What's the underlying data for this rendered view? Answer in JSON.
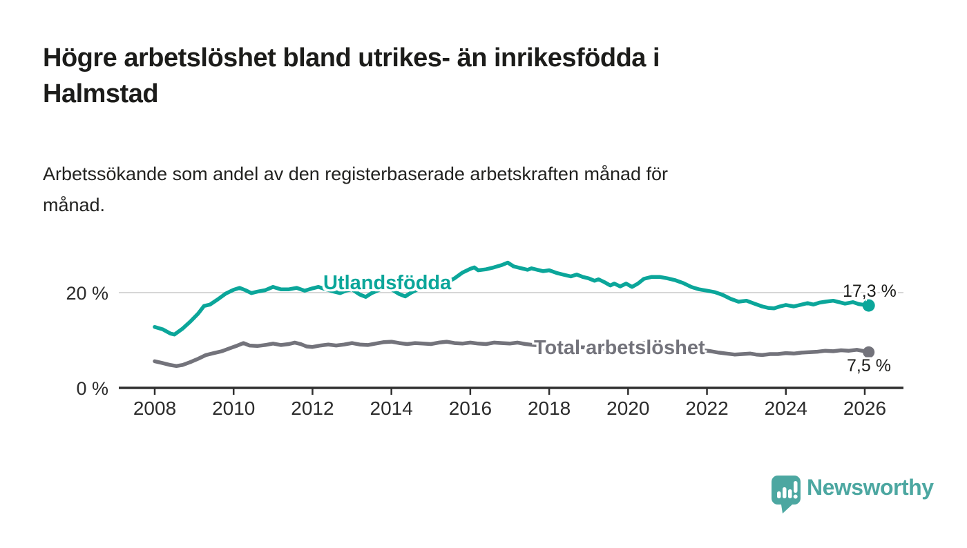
{
  "header": {
    "title_lines": [
      "Högre arbetslöshet bland utrikes- än inrikesfödda i",
      "Halmstad"
    ],
    "subtitle_lines": [
      "Arbetssökande som andel av den registerbaserade arbetskraften månad för",
      "månad."
    ]
  },
  "chart_data": {
    "type": "line",
    "title": "Högre arbetslöshet bland utrikes- än inrikesfödda i Halmstad",
    "subtitle": "Arbetssökande som andel av den registerbaserade arbetskraften månad för månad.",
    "xlabel": "",
    "ylabel": "",
    "grid": "single horizontal gridline at 20 %",
    "legend_position": "inline-labels-on-lines",
    "x_axis": {
      "ticks": [
        2008,
        2010,
        2012,
        2014,
        2016,
        2018,
        2020,
        2022,
        2024,
        2026
      ],
      "range": [
        2007.1,
        2027.0
      ]
    },
    "y_axis": {
      "ticks": [
        {
          "value": 0,
          "label": "0 %"
        },
        {
          "value": 20,
          "label": "20 %"
        }
      ],
      "range": [
        0,
        29
      ]
    },
    "series": [
      {
        "name": "Utlandsfödda",
        "color": "#0ba69a",
        "end_label": "17,3 %",
        "end_value": 17.3,
        "points": [
          [
            2008.0,
            12.8
          ],
          [
            2008.2,
            12.3
          ],
          [
            2008.4,
            11.4
          ],
          [
            2008.5,
            11.2
          ],
          [
            2008.7,
            12.4
          ],
          [
            2008.9,
            13.9
          ],
          [
            2009.1,
            15.6
          ],
          [
            2009.25,
            17.2
          ],
          [
            2009.4,
            17.5
          ],
          [
            2009.6,
            18.6
          ],
          [
            2009.8,
            19.8
          ],
          [
            2010.0,
            20.6
          ],
          [
            2010.15,
            21.0
          ],
          [
            2010.3,
            20.5
          ],
          [
            2010.45,
            19.9
          ],
          [
            2010.6,
            20.2
          ],
          [
            2010.8,
            20.5
          ],
          [
            2011.0,
            21.2
          ],
          [
            2011.2,
            20.7
          ],
          [
            2011.4,
            20.7
          ],
          [
            2011.6,
            21.0
          ],
          [
            2011.8,
            20.4
          ],
          [
            2012.0,
            20.9
          ],
          [
            2012.15,
            21.2
          ],
          [
            2012.3,
            20.8
          ],
          [
            2012.5,
            20.3
          ],
          [
            2012.7,
            19.9
          ],
          [
            2012.85,
            20.4
          ],
          [
            2013.0,
            20.7
          ],
          [
            2013.2,
            19.6
          ],
          [
            2013.35,
            19.1
          ],
          [
            2013.5,
            19.9
          ],
          [
            2013.7,
            20.6
          ],
          [
            2013.85,
            21.0
          ],
          [
            2014.0,
            20.7
          ],
          [
            2014.2,
            19.7
          ],
          [
            2014.35,
            19.2
          ],
          [
            2014.5,
            20.0
          ],
          [
            2014.7,
            20.8
          ],
          [
            2014.85,
            21.2
          ],
          [
            2015.0,
            21.4
          ],
          [
            2015.2,
            21.7
          ],
          [
            2015.4,
            22.1
          ],
          [
            2015.6,
            23.0
          ],
          [
            2015.8,
            24.2
          ],
          [
            2016.0,
            25.0
          ],
          [
            2016.1,
            25.3
          ],
          [
            2016.2,
            24.7
          ],
          [
            2016.4,
            24.9
          ],
          [
            2016.6,
            25.3
          ],
          [
            2016.8,
            25.8
          ],
          [
            2016.95,
            26.3
          ],
          [
            2017.1,
            25.5
          ],
          [
            2017.3,
            25.1
          ],
          [
            2017.45,
            24.8
          ],
          [
            2017.55,
            25.1
          ],
          [
            2017.7,
            24.8
          ],
          [
            2017.85,
            24.5
          ],
          [
            2018.0,
            24.7
          ],
          [
            2018.2,
            24.1
          ],
          [
            2018.4,
            23.7
          ],
          [
            2018.55,
            23.4
          ],
          [
            2018.7,
            23.8
          ],
          [
            2018.85,
            23.3
          ],
          [
            2019.0,
            23.0
          ],
          [
            2019.15,
            22.5
          ],
          [
            2019.25,
            22.8
          ],
          [
            2019.4,
            22.2
          ],
          [
            2019.55,
            21.5
          ],
          [
            2019.65,
            21.9
          ],
          [
            2019.8,
            21.3
          ],
          [
            2019.95,
            21.9
          ],
          [
            2020.1,
            21.2
          ],
          [
            2020.25,
            21.9
          ],
          [
            2020.4,
            22.9
          ],
          [
            2020.6,
            23.3
          ],
          [
            2020.8,
            23.3
          ],
          [
            2021.0,
            23.0
          ],
          [
            2021.2,
            22.6
          ],
          [
            2021.4,
            22.0
          ],
          [
            2021.6,
            21.2
          ],
          [
            2021.8,
            20.7
          ],
          [
            2022.0,
            20.4
          ],
          [
            2022.2,
            20.1
          ],
          [
            2022.4,
            19.5
          ],
          [
            2022.6,
            18.7
          ],
          [
            2022.8,
            18.1
          ],
          [
            2023.0,
            18.3
          ],
          [
            2023.2,
            17.7
          ],
          [
            2023.4,
            17.1
          ],
          [
            2023.55,
            16.8
          ],
          [
            2023.7,
            16.7
          ],
          [
            2023.85,
            17.1
          ],
          [
            2024.0,
            17.4
          ],
          [
            2024.2,
            17.1
          ],
          [
            2024.4,
            17.5
          ],
          [
            2024.55,
            17.8
          ],
          [
            2024.7,
            17.5
          ],
          [
            2024.85,
            17.9
          ],
          [
            2025.0,
            18.1
          ],
          [
            2025.2,
            18.3
          ],
          [
            2025.35,
            18.0
          ],
          [
            2025.5,
            17.7
          ],
          [
            2025.7,
            18.0
          ],
          [
            2025.85,
            17.6
          ],
          [
            2026.0,
            17.4
          ],
          [
            2026.1,
            17.3
          ]
        ]
      },
      {
        "name": "Total arbetslöshet",
        "color": "#73737b",
        "end_label": "7,5 %",
        "end_value": 7.5,
        "points": [
          [
            2008.0,
            5.6
          ],
          [
            2008.2,
            5.2
          ],
          [
            2008.4,
            4.8
          ],
          [
            2008.55,
            4.6
          ],
          [
            2008.7,
            4.8
          ],
          [
            2008.9,
            5.4
          ],
          [
            2009.1,
            6.1
          ],
          [
            2009.3,
            6.9
          ],
          [
            2009.5,
            7.3
          ],
          [
            2009.7,
            7.7
          ],
          [
            2009.9,
            8.3
          ],
          [
            2010.1,
            8.9
          ],
          [
            2010.25,
            9.4
          ],
          [
            2010.4,
            8.9
          ],
          [
            2010.6,
            8.8
          ],
          [
            2010.8,
            9.0
          ],
          [
            2011.0,
            9.3
          ],
          [
            2011.2,
            9.0
          ],
          [
            2011.4,
            9.2
          ],
          [
            2011.55,
            9.5
          ],
          [
            2011.7,
            9.2
          ],
          [
            2011.85,
            8.7
          ],
          [
            2012.0,
            8.6
          ],
          [
            2012.2,
            8.9
          ],
          [
            2012.4,
            9.1
          ],
          [
            2012.6,
            8.9
          ],
          [
            2012.8,
            9.1
          ],
          [
            2013.0,
            9.4
          ],
          [
            2013.2,
            9.1
          ],
          [
            2013.4,
            9.0
          ],
          [
            2013.6,
            9.3
          ],
          [
            2013.8,
            9.6
          ],
          [
            2014.0,
            9.7
          ],
          [
            2014.2,
            9.4
          ],
          [
            2014.4,
            9.2
          ],
          [
            2014.6,
            9.4
          ],
          [
            2014.8,
            9.3
          ],
          [
            2015.0,
            9.2
          ],
          [
            2015.2,
            9.5
          ],
          [
            2015.4,
            9.7
          ],
          [
            2015.6,
            9.4
          ],
          [
            2015.8,
            9.3
          ],
          [
            2016.0,
            9.5
          ],
          [
            2016.2,
            9.3
          ],
          [
            2016.4,
            9.2
          ],
          [
            2016.6,
            9.5
          ],
          [
            2016.8,
            9.4
          ],
          [
            2017.0,
            9.3
          ],
          [
            2017.2,
            9.5
          ],
          [
            2017.4,
            9.2
          ],
          [
            2017.6,
            9.0
          ],
          [
            2017.8,
            8.9
          ],
          [
            2018.0,
            8.8
          ],
          [
            2018.3,
            8.7
          ],
          [
            2018.6,
            8.6
          ],
          [
            2018.9,
            8.5
          ],
          [
            2019.2,
            8.3
          ],
          [
            2019.5,
            8.2
          ],
          [
            2019.8,
            8.3
          ],
          [
            2020.0,
            8.5
          ],
          [
            2020.2,
            9.0
          ],
          [
            2020.4,
            9.4
          ],
          [
            2020.6,
            9.2
          ],
          [
            2020.8,
            9.0
          ],
          [
            2021.0,
            8.8
          ],
          [
            2021.3,
            8.5
          ],
          [
            2021.6,
            8.1
          ],
          [
            2021.9,
            7.9
          ],
          [
            2022.1,
            7.7
          ],
          [
            2022.3,
            7.4
          ],
          [
            2022.5,
            7.2
          ],
          [
            2022.7,
            7.0
          ],
          [
            2022.9,
            7.1
          ],
          [
            2023.1,
            7.2
          ],
          [
            2023.25,
            7.0
          ],
          [
            2023.4,
            6.9
          ],
          [
            2023.6,
            7.1
          ],
          [
            2023.8,
            7.1
          ],
          [
            2024.0,
            7.3
          ],
          [
            2024.2,
            7.2
          ],
          [
            2024.4,
            7.4
          ],
          [
            2024.6,
            7.5
          ],
          [
            2024.8,
            7.6
          ],
          [
            2025.0,
            7.8
          ],
          [
            2025.2,
            7.7
          ],
          [
            2025.4,
            7.9
          ],
          [
            2025.6,
            7.8
          ],
          [
            2025.8,
            8.0
          ],
          [
            2026.0,
            7.7
          ],
          [
            2026.1,
            7.5
          ]
        ]
      }
    ]
  },
  "colors": {
    "accent_teal": "#0ba69a",
    "series_gray": "#73737b",
    "axis": "#2f2f2f",
    "gridline": "#d6d6d6",
    "text": "#1c1c1a",
    "logo_teal": "#4ca7a1"
  },
  "branding": {
    "logo_text": "Newsworthy"
  }
}
